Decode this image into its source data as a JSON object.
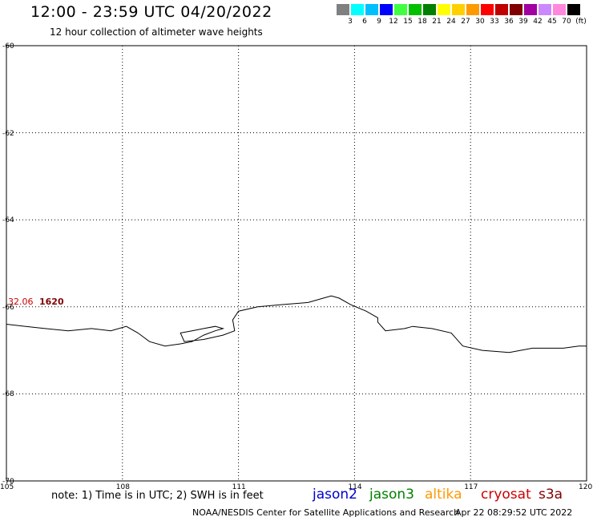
{
  "header": {
    "title": "12:00 - 23:59 UTC 04/20/2022",
    "subtitle": "12 hour collection of altimeter wave heights"
  },
  "legend": {
    "swatches": [
      {
        "color": "#808080",
        "label": "3"
      },
      {
        "color": "#00ffff",
        "label": "6"
      },
      {
        "color": "#00bfff",
        "label": "9"
      },
      {
        "color": "#0000ff",
        "label": "12"
      },
      {
        "color": "#40ff40",
        "label": "15"
      },
      {
        "color": "#00c000",
        "label": "18"
      },
      {
        "color": "#008000",
        "label": "21"
      },
      {
        "color": "#ffff00",
        "label": "24"
      },
      {
        "color": "#ffd000",
        "label": "27"
      },
      {
        "color": "#ff9900",
        "label": "30"
      },
      {
        "color": "#ff0000",
        "label": "33"
      },
      {
        "color": "#c00000",
        "label": "36"
      },
      {
        "color": "#800000",
        "label": "39"
      },
      {
        "color": "#a000a0",
        "label": "42"
      },
      {
        "color": "#cc88ff",
        "label": "45"
      },
      {
        "color": "#ff88dd",
        "label": "70"
      },
      {
        "color": "#000000",
        "label": "(ft)"
      }
    ]
  },
  "axes": {
    "lat_labels": [
      "-60",
      "-62",
      "-64",
      "-66",
      "-68",
      "-70"
    ],
    "lon_labels": [
      "105",
      "108",
      "111",
      "114",
      "117",
      "120"
    ]
  },
  "map": {
    "lon_range": [
      105,
      120
    ],
    "lat_range": [
      -60,
      -70
    ],
    "coastline": [
      [
        105,
        -66.4
      ],
      [
        105.5,
        -66.45
      ],
      [
        106,
        -66.5
      ],
      [
        106.6,
        -66.55
      ],
      [
        107.2,
        -66.5
      ],
      [
        107.7,
        -66.55
      ],
      [
        108.1,
        -66.45
      ],
      [
        108.4,
        -66.6
      ],
      [
        108.7,
        -66.8
      ],
      [
        109.1,
        -66.9
      ],
      [
        109.5,
        -66.85
      ],
      [
        109.8,
        -66.8
      ],
      [
        109.9,
        -66.75
      ],
      [
        110.1,
        -66.65
      ],
      [
        110.4,
        -66.55
      ],
      [
        110.6,
        -66.5
      ],
      [
        110.4,
        -66.45
      ],
      [
        110.1,
        -66.5
      ],
      [
        109.8,
        -66.55
      ],
      [
        109.5,
        -66.6
      ],
      [
        109.6,
        -66.8
      ],
      [
        110.1,
        -66.75
      ],
      [
        110.6,
        -66.65
      ],
      [
        110.9,
        -66.55
      ],
      [
        110.85,
        -66.3
      ],
      [
        111.0,
        -66.1
      ],
      [
        111.5,
        -66.0
      ],
      [
        112.1,
        -65.95
      ],
      [
        112.8,
        -65.9
      ],
      [
        113.2,
        -65.8
      ],
      [
        113.4,
        -65.75
      ],
      [
        113.6,
        -65.8
      ],
      [
        113.9,
        -65.95
      ],
      [
        114.3,
        -66.1
      ],
      [
        114.6,
        -66.25
      ],
      [
        114.6,
        -66.35
      ],
      [
        114.8,
        -66.55
      ],
      [
        115.3,
        -66.5
      ],
      [
        115.5,
        -66.45
      ],
      [
        116.0,
        -66.5
      ],
      [
        116.5,
        -66.6
      ],
      [
        116.8,
        -66.9
      ],
      [
        117.3,
        -67.0
      ],
      [
        118.0,
        -67.05
      ],
      [
        118.6,
        -66.95
      ],
      [
        119.4,
        -66.95
      ],
      [
        119.8,
        -66.9
      ],
      [
        120,
        -66.9
      ]
    ]
  },
  "track": {
    "swh_value": "32.06",
    "time_label": "1620"
  },
  "footer": {
    "note": "note:  1) Time is in UTC;  2) SWH is in feet",
    "satellites": [
      {
        "name": "jason2",
        "color": "#0000cc"
      },
      {
        "name": "jason3",
        "color": "#008000"
      },
      {
        "name": "altika",
        "color": "#ff9900"
      },
      {
        "name": "cryosat",
        "color": "#cc0000"
      },
      {
        "name": "s3a",
        "color": "#800000"
      }
    ],
    "credit": "NOAA/NESDIS Center for Satellite Applications and Research",
    "timestamp": "Apr 22 08:29:52 UTC 2022"
  }
}
